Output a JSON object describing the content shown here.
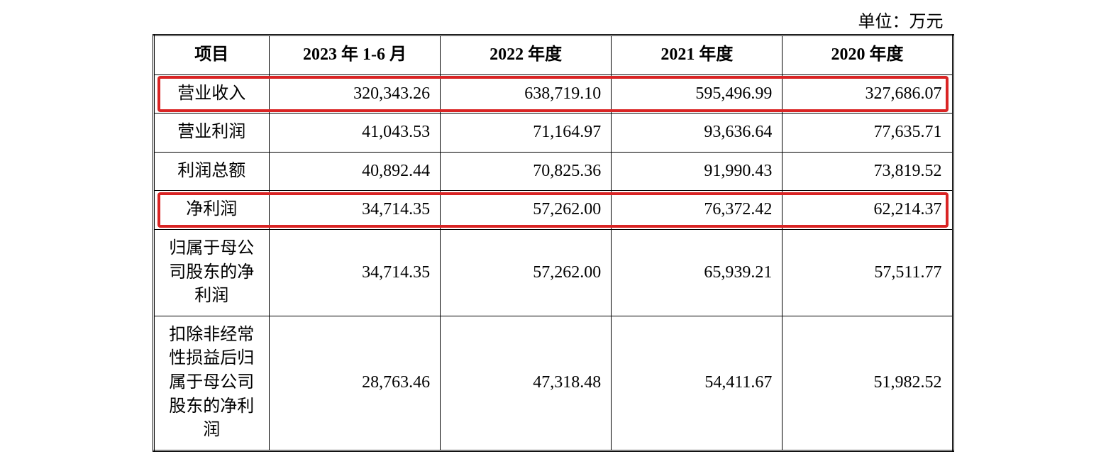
{
  "unit_label": "单位：万元",
  "table": {
    "columns": [
      "项目",
      "2023 年 1-6 月",
      "2022 年度",
      "2021 年度",
      "2020 年度"
    ],
    "rows": [
      {
        "label": "营业收入",
        "values": [
          "320,343.26",
          "638,719.10",
          "595,496.99",
          "327,686.07"
        ],
        "highlight": true
      },
      {
        "label": "营业利润",
        "values": [
          "41,043.53",
          "71,164.97",
          "93,636.64",
          "77,635.71"
        ],
        "highlight": false
      },
      {
        "label": "利润总额",
        "values": [
          "40,892.44",
          "70,825.36",
          "91,990.43",
          "73,819.52"
        ],
        "highlight": false
      },
      {
        "label": "净利润",
        "values": [
          "34,714.35",
          "57,262.00",
          "76,372.42",
          "62,214.37"
        ],
        "highlight": true
      },
      {
        "label": "归属于母公司股东的净利润",
        "values": [
          "34,714.35",
          "57,262.00",
          "65,939.21",
          "57,511.77"
        ],
        "highlight": false
      },
      {
        "label": "扣除非经常性损益后归属于母公司股东的净利润",
        "values": [
          "28,763.46",
          "47,318.48",
          "54,411.67",
          "51,982.52"
        ],
        "highlight": false
      }
    ],
    "highlight_color": "#d92424",
    "border_color": "#000000",
    "background_color": "#ffffff",
    "text_color": "#000000",
    "font_size_pt": 18
  }
}
